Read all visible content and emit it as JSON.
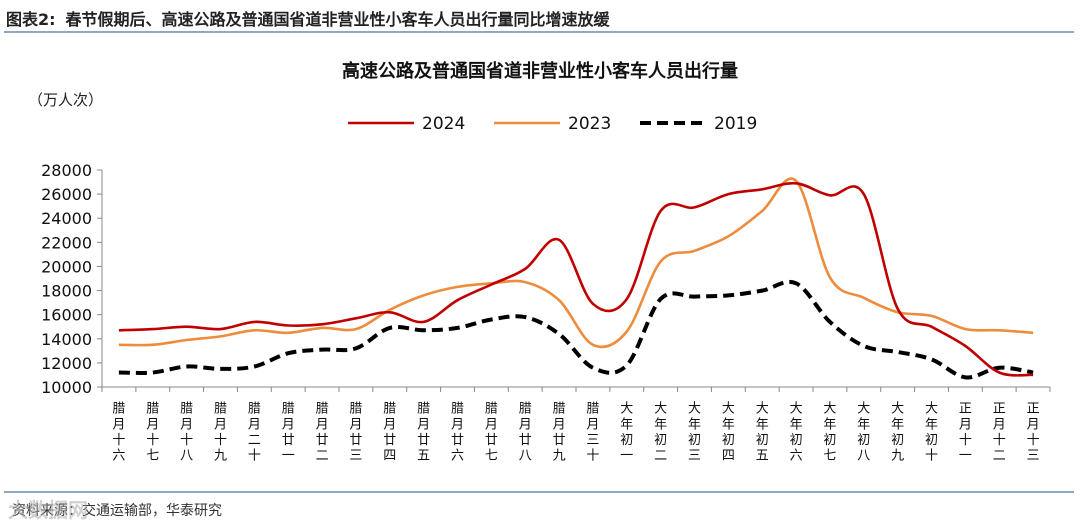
{
  "header": {
    "figure_label": "图表2:",
    "figure_title": "春节假期后、高速公路及普通国省道非营业性小客车人员出行量同比增速放缓"
  },
  "footer": {
    "source": "资料来源：交通运输部，华泰研究",
    "watermark": "大数据网"
  },
  "chart_data": {
    "type": "line",
    "title": "高速公路及普通国省道非营业性小客车人员出行量",
    "ylabel": "（万人次）",
    "ylim": [
      10000,
      28000
    ],
    "yticks": [
      10000,
      12000,
      14000,
      16000,
      18000,
      20000,
      22000,
      24000,
      26000,
      28000
    ],
    "legend_position": "top-center",
    "categories": [
      "腊月十六",
      "腊月十七",
      "腊月十八",
      "腊月十九",
      "腊月二十",
      "腊月廿一",
      "腊月廿二",
      "腊月廿三",
      "腊月廿四",
      "腊月廿五",
      "腊月廿六",
      "腊月廿七",
      "腊月廿八",
      "腊月廿九",
      "腊月三十",
      "大年初一",
      "大年初二",
      "大年初三",
      "大年初四",
      "大年初五",
      "大年初六",
      "大年初七",
      "大年初八",
      "大年初九",
      "大年初十",
      "正月十一",
      "正月十二",
      "正月十三"
    ],
    "series": [
      {
        "name": "2024",
        "color": "#c00000",
        "style": "solid",
        "values": [
          14700,
          14800,
          15000,
          14800,
          15400,
          15100,
          15200,
          15700,
          16200,
          15400,
          17200,
          18500,
          19800,
          22200,
          16900,
          17300,
          24600,
          24900,
          26000,
          26400,
          26900,
          25900,
          26000,
          16500,
          15000,
          13400,
          11200,
          11000
        ]
      },
      {
        "name": "2023",
        "color": "#ed8c3c",
        "style": "solid",
        "values": [
          13500,
          13500,
          13900,
          14200,
          14700,
          14500,
          14900,
          14800,
          16400,
          17600,
          18300,
          18600,
          18700,
          17200,
          13500,
          14600,
          20400,
          21300,
          22500,
          24600,
          27100,
          19100,
          17400,
          16200,
          15900,
          14800,
          14700,
          14500
        ]
      },
      {
        "name": "2019",
        "color": "#000000",
        "style": "dashed",
        "values": [
          11200,
          11200,
          11700,
          11500,
          11700,
          12800,
          13100,
          13200,
          14900,
          14700,
          14900,
          15600,
          15800,
          14400,
          11600,
          11800,
          17300,
          17500,
          17600,
          18000,
          18600,
          15400,
          13400,
          12900,
          12300,
          10800,
          11600,
          11200
        ]
      }
    ]
  }
}
